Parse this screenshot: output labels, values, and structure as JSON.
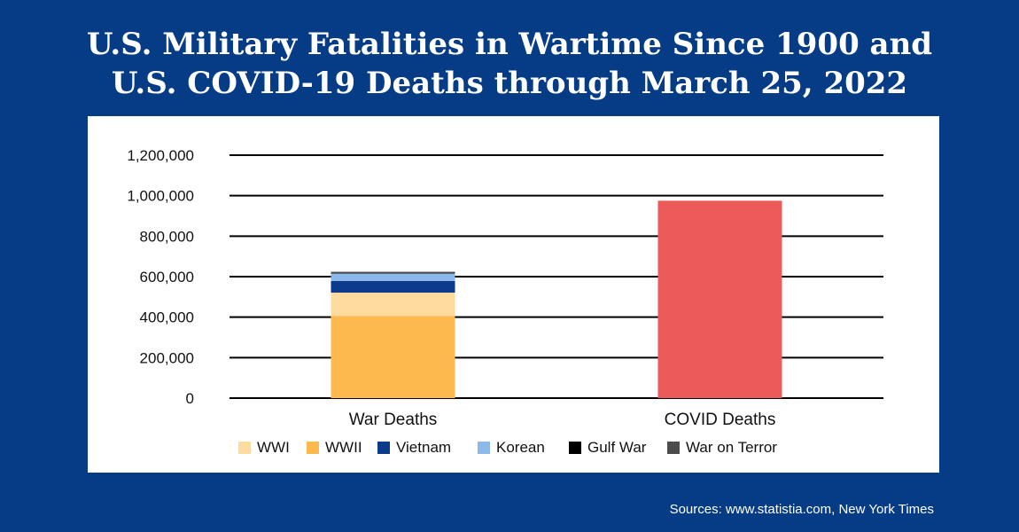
{
  "title_line1": "U.S. Military Fatalities in Wartime Since 1900 and",
  "title_line2": "U.S. COVID-19 Deaths through March 25, 2022",
  "source": "Sources: www.statistia.com, New York Times",
  "chart_data": {
    "type": "bar",
    "stacked": true,
    "categories": [
      "War Deaths",
      "COVID Deaths"
    ],
    "ylim": [
      0,
      1200000
    ],
    "yticks": [
      0,
      200000,
      400000,
      600000,
      800000,
      1000000,
      1200000
    ],
    "ytick_labels": [
      "0",
      "200,000",
      "400,000",
      "600,000",
      "800,000",
      "1,000,000",
      "1,200,000"
    ],
    "grid": true,
    "legend_position": "bottom",
    "series": [
      {
        "name": "WWII",
        "color": "#fdb94d",
        "values": [
          405000,
          0
        ]
      },
      {
        "name": "WWI",
        "color": "#fddb9f",
        "values": [
          116000,
          0
        ]
      },
      {
        "name": "Vietnam",
        "color": "#0b3b8a",
        "values": [
          58000,
          0
        ]
      },
      {
        "name": "Korean",
        "color": "#8db8ec",
        "values": [
          36000,
          0
        ]
      },
      {
        "name": "Gulf War",
        "color": "#000000",
        "values": [
          2000,
          0
        ]
      },
      {
        "name": "War on Terror",
        "color": "#4d4d4d",
        "values": [
          7000,
          0
        ]
      },
      {
        "name": "COVID Deaths",
        "color": "#ed5a5a",
        "values": [
          0,
          975000
        ]
      }
    ],
    "legend": [
      {
        "name": "WWI",
        "color": "#fddb9f"
      },
      {
        "name": "WWII",
        "color": "#fdb94d"
      },
      {
        "name": "Vietnam",
        "color": "#0b3b8a"
      },
      {
        "name": "Korean",
        "color": "#8db8ec"
      },
      {
        "name": "Gulf War",
        "color": "#000000"
      },
      {
        "name": "War on Terror",
        "color": "#4d4d4d"
      }
    ]
  }
}
